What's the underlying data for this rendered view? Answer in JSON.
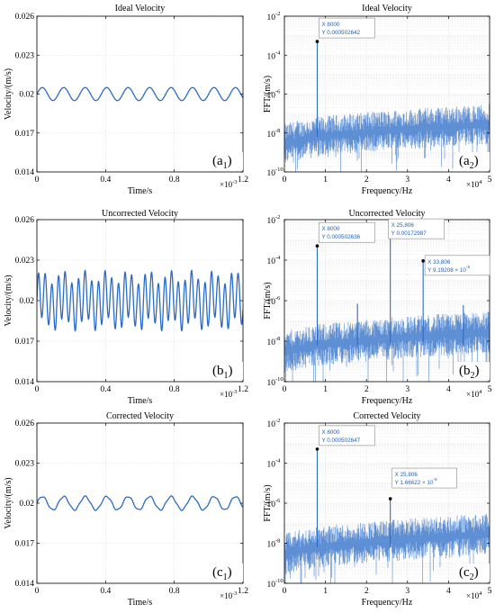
{
  "colors": {
    "line": "#2b6bc6",
    "grid": "#dcdcdc",
    "datatip_bg": "#ffffff",
    "datatip_text": "#1f5fbf"
  },
  "chart_data": [
    {
      "type": "line",
      "title": "Ideal Velocity",
      "xlabel": "Time/s",
      "ylabel": "Velocity/(m/s)",
      "xlim": [
        0,
        1.2
      ],
      "x_exponent": "×10",
      "x_exponent_power": "-3",
      "ylim": [
        0.014,
        0.026
      ],
      "xticks": [
        "0",
        "0.4",
        "0.8",
        "1.2"
      ],
      "yticks": [
        "0.014",
        "0.017",
        "0.02",
        "0.023",
        "0.026"
      ],
      "ytick_values": [
        0.014,
        0.017,
        0.02,
        0.023,
        0.026
      ],
      "xtick_values": [
        0,
        0.4,
        0.8,
        1.2
      ],
      "grid": true,
      "label_main": "(a",
      "label_sub": "1",
      "series": [
        {
          "mean": 0.02,
          "components": [
            {
              "amp": 0.0005,
              "cycles": 9.6
            }
          ]
        }
      ]
    },
    {
      "type": "line",
      "title": "Ideal Velocity",
      "xlabel": "Frequency/Hz",
      "ylabel": "FFT/(m/s)",
      "xlim": [
        0,
        5
      ],
      "x_exponent": "×10",
      "x_exponent_power": "4",
      "yscale": "log",
      "ylim": [
        1e-10,
        0.01
      ],
      "xticks": [
        "0",
        "1",
        "2",
        "3",
        "4",
        "5"
      ],
      "xtick_values": [
        0,
        1,
        2,
        3,
        4,
        5
      ],
      "yticks_base": "10",
      "yticks_exp": [
        "-10",
        "-8",
        "-6",
        "-4",
        "-2"
      ],
      "ytick_log_values": [
        -10,
        -8,
        -6,
        -4,
        -2
      ],
      "grid": true,
      "label_main": "(a",
      "label_sub": "2",
      "noise_floor": {
        "log_start": -8.2,
        "log_end": -7.1
      },
      "peaks": [
        {
          "x": 8000,
          "y": 0.000502642
        }
      ],
      "datatips": [
        {
          "x_text": "X 8000",
          "y_text": "Y 0.000502642"
        }
      ]
    },
    {
      "type": "line",
      "title": "Uncorrected Velocity",
      "xlabel": "Time/s",
      "ylabel": "Velocity/(m/s)",
      "xlim": [
        0,
        1.2
      ],
      "x_exponent": "×10",
      "x_exponent_power": "-3",
      "ylim": [
        0.014,
        0.026
      ],
      "xticks": [
        "0",
        "0.4",
        "0.8",
        "1.2"
      ],
      "yticks": [
        "0.014",
        "0.017",
        "0.02",
        "0.023",
        "0.026"
      ],
      "ytick_values": [
        0.014,
        0.017,
        0.02,
        0.023,
        0.026
      ],
      "xtick_values": [
        0,
        0.4,
        0.8,
        1.2
      ],
      "grid": true,
      "label_main": "(b",
      "label_sub": "1",
      "series": [
        {
          "mean": 0.02,
          "components": [
            {
              "amp": 0.0005,
              "cycles": 9.6
            },
            {
              "amp": 0.00172987,
              "cycles": 30.97
            },
            {
              "amp": 9e-05,
              "cycles": 40.57
            }
          ]
        }
      ]
    },
    {
      "type": "line",
      "title": "Uncorrected Velocity",
      "xlabel": "Frequency/Hz",
      "ylabel": "FFT/(m/s)",
      "xlim": [
        0,
        5
      ],
      "x_exponent": "×10",
      "x_exponent_power": "4",
      "yscale": "log",
      "ylim": [
        1e-10,
        0.01
      ],
      "xticks": [
        "0",
        "1",
        "2",
        "3",
        "4",
        "5"
      ],
      "xtick_values": [
        0,
        1,
        2,
        3,
        4,
        5
      ],
      "yticks_base": "10",
      "yticks_exp": [
        "-10",
        "-8",
        "-6",
        "-4",
        "-2"
      ],
      "ytick_log_values": [
        -10,
        -8,
        -6,
        -4,
        -2
      ],
      "grid": true,
      "label_main": "(b",
      "label_sub": "2",
      "noise_floor": {
        "log_start": -8.2,
        "log_end": -7.1
      },
      "peaks": [
        {
          "x": 8000,
          "y": 0.000502636
        },
        {
          "x": 25806,
          "y": 0.00172987
        },
        {
          "x": 33806,
          "y": 9.19208e-05
        },
        {
          "x": 17800,
          "y": 7e-07
        },
        {
          "x": 43600,
          "y": 6e-07
        }
      ],
      "datatips": [
        {
          "x_text": "X 8000",
          "y_text": "Y 0.000502636"
        },
        {
          "x_text": "X 25,806",
          "y_text": "Y 0.00172987"
        },
        {
          "x_text": "X 33,806",
          "y_text": "Y 9.19208 × 10",
          "y_power": "-5"
        }
      ]
    },
    {
      "type": "line",
      "title": "Corrected Velocity",
      "xlabel": "Time/s",
      "ylabel": "Velocity/(m/s)",
      "xlim": [
        0,
        1.2
      ],
      "x_exponent": "×10",
      "x_exponent_power": "-3",
      "ylim": [
        0.014,
        0.026
      ],
      "xticks": [
        "0",
        "0.4",
        "0.8",
        "1.2"
      ],
      "yticks": [
        "0.014",
        "0.017",
        "0.02",
        "0.023",
        "0.026"
      ],
      "ytick_values": [
        0.014,
        0.017,
        0.02,
        0.023,
        0.026
      ],
      "xtick_values": [
        0,
        0.4,
        0.8,
        1.2
      ],
      "grid": true,
      "label_main": "(c",
      "label_sub": "1",
      "series": [
        {
          "mean": 0.02,
          "components": [
            {
              "amp": 0.0005,
              "cycles": 9.6
            },
            {
              "amp": 5e-05,
              "cycles": 30.97
            }
          ]
        }
      ]
    },
    {
      "type": "line",
      "title": "Corrected Velocity",
      "xlabel": "Frequency/Hz",
      "ylabel": "FFT/(m/s)",
      "xlim": [
        0,
        5
      ],
      "x_exponent": "×10",
      "x_exponent_power": "4",
      "yscale": "log",
      "ylim": [
        1e-10,
        0.01
      ],
      "xticks": [
        "0",
        "1",
        "2",
        "3",
        "4",
        "5"
      ],
      "xtick_values": [
        0,
        1,
        2,
        3,
        4,
        5
      ],
      "yticks_base": "10",
      "yticks_exp": [
        "-10",
        "-8",
        "-6",
        "-4",
        "-2"
      ],
      "ytick_log_values": [
        -10,
        -8,
        -6,
        -4,
        -2
      ],
      "grid": true,
      "label_main": "(c",
      "label_sub": "2",
      "noise_floor": {
        "log_start": -8.2,
        "log_end": -7.1
      },
      "peaks": [
        {
          "x": 8000,
          "y": 0.000502647
        },
        {
          "x": 25806,
          "y": 1.66622e-06
        }
      ],
      "datatips": [
        {
          "x_text": "X 8000",
          "y_text": "Y 0.000502647"
        },
        {
          "x_text": "X 25,806",
          "y_text": "Y 1.66622 × 10",
          "y_power": "-6"
        }
      ]
    }
  ]
}
